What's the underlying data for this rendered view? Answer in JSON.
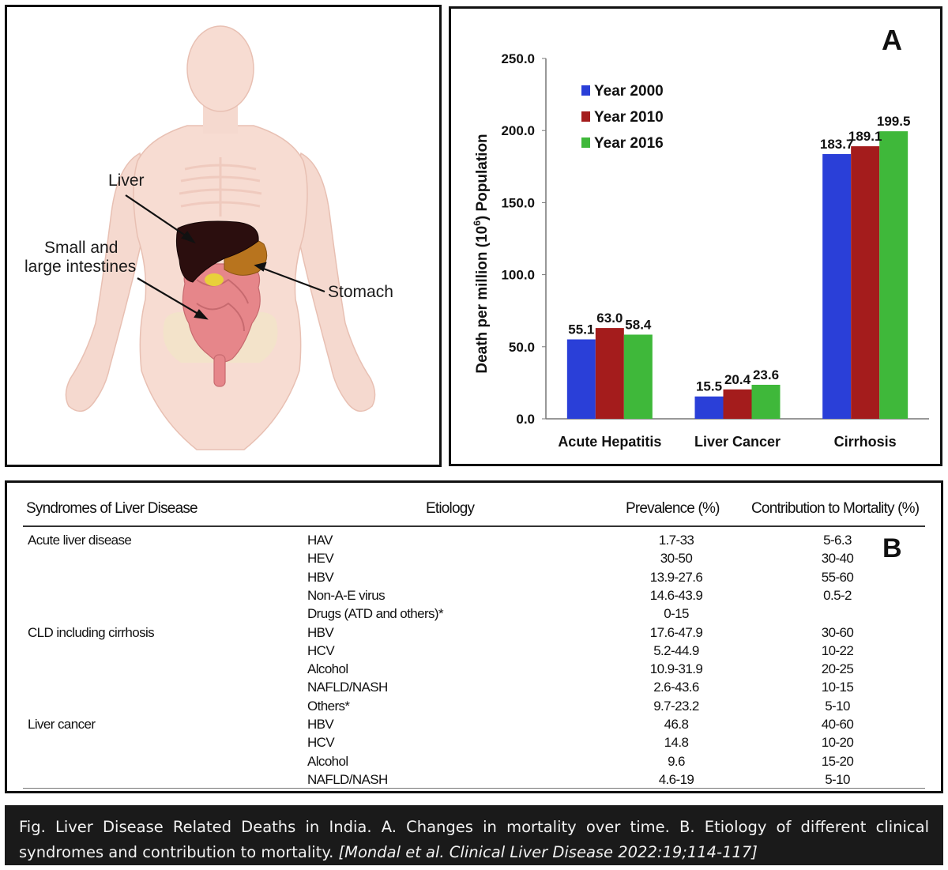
{
  "anatomy": {
    "labels": {
      "liver": "Liver",
      "intestines_line1": "Small and",
      "intestines_line2": "large intestines",
      "stomach": "Stomach"
    }
  },
  "chart_panel_letter": "A",
  "table_panel_letter": "B",
  "chart_data": {
    "type": "bar",
    "categories": [
      "Acute Hepatitis",
      "Liver Cancer",
      "Cirrhosis"
    ],
    "series": [
      {
        "name": "Year 2000",
        "values": [
          55.1,
          15.5,
          183.7
        ],
        "color": "#2a3fd8"
      },
      {
        "name": "Year 2010",
        "values": [
          63.0,
          20.4,
          189.1
        ],
        "color": "#a41c1c"
      },
      {
        "name": "Year 2016",
        "values": [
          58.4,
          23.6,
          199.5
        ],
        "color": "#3fb83a"
      }
    ],
    "data_labels": [
      [
        "55.1",
        "15.5",
        "183.7"
      ],
      [
        "63.0",
        "20.4",
        "189.1"
      ],
      [
        "58.4",
        "23.6",
        "199.5"
      ]
    ],
    "ylabel_main": "Death per million (10",
    "ylabel_sup": "6",
    "ylabel_end": ") Population",
    "ylim": [
      0,
      250
    ],
    "yticks": [
      "0.0",
      "50.0",
      "100.0",
      "150.0",
      "200.0",
      "250.0"
    ],
    "ytick_values": [
      0,
      50,
      100,
      150,
      200,
      250
    ],
    "grid": false,
    "legend_position": "top-left"
  },
  "table": {
    "headers": [
      "Syndromes of Liver Disease",
      "Etiology",
      "Prevalence (%)",
      "Contribution to Mortality (%)"
    ],
    "rows": [
      {
        "syndrome": "Acute liver disease",
        "etiology": "HAV",
        "prevalence": "1.7-33",
        "mortality": "5-6.3"
      },
      {
        "syndrome": "",
        "etiology": "HEV",
        "prevalence": "30-50",
        "mortality": "30-40"
      },
      {
        "syndrome": "",
        "etiology": "HBV",
        "prevalence": "13.9-27.6",
        "mortality": "55-60"
      },
      {
        "syndrome": "",
        "etiology": "Non-A-E virus",
        "prevalence": "14.6-43.9",
        "mortality": "0.5-2"
      },
      {
        "syndrome": "",
        "etiology": "Drugs (ATD and others)*",
        "prevalence": "0-15",
        "mortality": ""
      },
      {
        "syndrome": "CLD including cirrhosis",
        "etiology": "HBV",
        "prevalence": "17.6-47.9",
        "mortality": "30-60"
      },
      {
        "syndrome": "",
        "etiology": "HCV",
        "prevalence": "5.2-44.9",
        "mortality": "10-22"
      },
      {
        "syndrome": "",
        "etiology": "Alcohol",
        "prevalence": "10.9-31.9",
        "mortality": "20-25"
      },
      {
        "syndrome": "",
        "etiology": "NAFLD/NASH",
        "prevalence": "2.6-43.6",
        "mortality": "10-15"
      },
      {
        "syndrome": "",
        "etiology": "Others*",
        "prevalence": "9.7-23.2",
        "mortality": "5-10"
      },
      {
        "syndrome": "Liver cancer",
        "etiology": "HBV",
        "prevalence": "46.8",
        "mortality": "40-60"
      },
      {
        "syndrome": "",
        "etiology": "HCV",
        "prevalence": "14.8",
        "mortality": "10-20"
      },
      {
        "syndrome": "",
        "etiology": "Alcohol",
        "prevalence": "9.6",
        "mortality": "15-20"
      },
      {
        "syndrome": "",
        "etiology": "NAFLD/NASH",
        "prevalence": "4.6-19",
        "mortality": "5-10"
      }
    ]
  },
  "caption": {
    "text": "Fig. Liver Disease Related Deaths in India. A. Changes in mortality over time. B. Etiology of different clinical syndromes and contribution to mortality. ",
    "citation": "[Mondal et al.  Clinical Liver Disease 2022:19;114-117]"
  }
}
